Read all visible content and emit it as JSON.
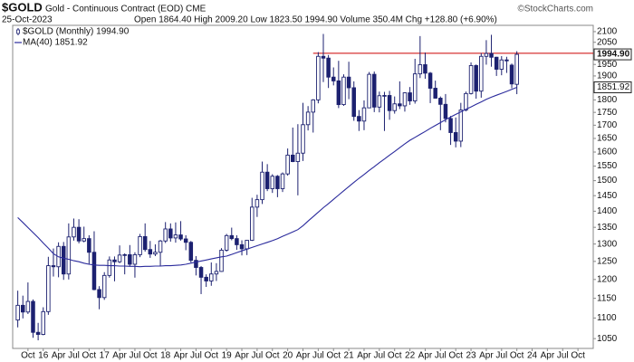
{
  "header": {
    "symbol": "$GOLD",
    "description": "Gold - Continuous Contract (EOD) CME",
    "date": "25-Oct-2023",
    "quote": "Open 1864.40 High 2009.20 Low 1823.50 1994.90 Volume 350.4M Chg +128.80 (+6.90%)",
    "copyright": "©StockCharts.com"
  },
  "chart_data": {
    "type": "candlestick",
    "log_scale": true,
    "grid": false,
    "legend": "top-left",
    "x": [
      "2015-08",
      "2015-09",
      "2015-10",
      "2015-11",
      "2015-12",
      "2016-01",
      "2016-02",
      "2016-03",
      "2016-04",
      "2016-05",
      "2016-06",
      "2016-07",
      "2016-08",
      "2016-09",
      "2016-10",
      "2016-11",
      "2016-12",
      "2017-01",
      "2017-02",
      "2017-03",
      "2017-04",
      "2017-05",
      "2017-06",
      "2017-07",
      "2017-08",
      "2017-09",
      "2017-10",
      "2017-11",
      "2017-12",
      "2018-01",
      "2018-02",
      "2018-03",
      "2018-04",
      "2018-05",
      "2018-06",
      "2018-07",
      "2018-08",
      "2018-09",
      "2018-10",
      "2018-11",
      "2018-12",
      "2019-01",
      "2019-02",
      "2019-03",
      "2019-04",
      "2019-05",
      "2019-06",
      "2019-07",
      "2019-08",
      "2019-09",
      "2019-10",
      "2019-11",
      "2019-12",
      "2020-01",
      "2020-02",
      "2020-03",
      "2020-04",
      "2020-05",
      "2020-06",
      "2020-07",
      "2020-08",
      "2020-09",
      "2020-10",
      "2020-11",
      "2020-12",
      "2021-01",
      "2021-02",
      "2021-03",
      "2021-04",
      "2021-05",
      "2021-06",
      "2021-07",
      "2021-08",
      "2021-09",
      "2021-10",
      "2021-11",
      "2021-12",
      "2022-01",
      "2022-02",
      "2022-03",
      "2022-04",
      "2022-05",
      "2022-06",
      "2022-07",
      "2022-08",
      "2022-09",
      "2022-10",
      "2022-11",
      "2022-12",
      "2023-01",
      "2023-02",
      "2023-03",
      "2023-04",
      "2023-05",
      "2023-06",
      "2023-07",
      "2023-08",
      "2023-09",
      "2023-10"
    ],
    "series": [
      {
        "name": "$GOLD (Monthly) 1994.90",
        "color": "#1c2170",
        "open": [
          1095,
          1132,
          1115,
          1142,
          1065,
          1060,
          1116,
          1238,
          1235,
          1293,
          1215,
          1321,
          1350,
          1309,
          1316,
          1276,
          1173,
          1152,
          1211,
          1254,
          1249,
          1268,
          1269,
          1242,
          1269,
          1322,
          1284,
          1271,
          1276,
          1309,
          1345,
          1318,
          1327,
          1315,
          1305,
          1253,
          1233,
          1206,
          1196,
          1215,
          1222,
          1282,
          1325,
          1316,
          1298,
          1286,
          1311,
          1413,
          1437,
          1529,
          1473,
          1515,
          1473,
          1523,
          1589,
          1566,
          1596,
          1702,
          1751,
          1800,
          1986,
          1978,
          1895,
          1879,
          1781,
          1895,
          1850,
          1734,
          1716,
          1768,
          1907,
          1771,
          1817,
          1818,
          1757,
          1784,
          1776,
          1829,
          1796,
          1909,
          1949,
          1912,
          1848,
          1807,
          1782,
          1726,
          1672,
          1640,
          1759,
          1826,
          1945,
          1836,
          1986,
          1999,
          1982,
          1929,
          1970,
          1947,
          1864.4
        ],
        "high": [
          1170,
          1157,
          1192,
          1147,
          1088,
          1127,
          1263,
          1287,
          1305,
          1306,
          1362,
          1377,
          1375,
          1352,
          1326,
          1338,
          1182,
          1220,
          1264,
          1264,
          1296,
          1273,
          1297,
          1276,
          1330,
          1362,
          1309,
          1299,
          1312,
          1366,
          1362,
          1365,
          1369,
          1326,
          1309,
          1265,
          1237,
          1214,
          1247,
          1245,
          1288,
          1330,
          1349,
          1326,
          1311,
          1311,
          1443,
          1453,
          1566,
          1557,
          1522,
          1519,
          1528,
          1613,
          1691,
          1704,
          1788,
          1775,
          1803,
          2005,
          2089,
          1992,
          1937,
          1966,
          1907,
          1962,
          1877,
          1759,
          1798,
          1917,
          1919,
          1834,
          1833,
          1837,
          1814,
          1877,
          1831,
          1853,
          1975,
          2079,
          2003,
          1917,
          1880,
          1814,
          1824,
          1736,
          1730,
          1788,
          1834,
          1959,
          1950,
          2001,
          2060,
          2085,
          1984,
          1987,
          1984,
          1954,
          2009.2
        ],
        "low": [
          1077,
          1099,
          1110,
          1052,
          1046,
          1058,
          1108,
          1208,
          1206,
          1199,
          1200,
          1310,
          1302,
          1305,
          1241,
          1171,
          1122,
          1146,
          1205,
          1195,
          1245,
          1214,
          1236,
          1205,
          1262,
          1278,
          1260,
          1265,
          1237,
          1303,
          1307,
          1304,
          1310,
          1282,
          1247,
          1211,
          1161,
          1180,
          1183,
          1196,
          1221,
          1278,
          1311,
          1283,
          1267,
          1268,
          1309,
          1382,
          1423,
          1465,
          1459,
          1445,
          1462,
          1517,
          1564,
          1451,
          1568,
          1680,
          1672,
          1786,
          1874,
          1849,
          1860,
          1767,
          1776,
          1803,
          1717,
          1678,
          1681,
          1768,
          1751,
          1750,
          1678,
          1721,
          1745,
          1763,
          1753,
          1780,
          1785,
          1891,
          1888,
          1787,
          1805,
          1681,
          1711,
          1626,
          1617,
          1618,
          1754,
          1822,
          1805,
          1809,
          1949,
          1940,
          1900,
          1903,
          1913,
          1848,
          1823.5
        ],
        "close": [
          1132,
          1115,
          1142,
          1065,
          1060,
          1116,
          1238,
          1235,
          1293,
          1215,
          1321,
          1350,
          1309,
          1316,
          1276,
          1173,
          1152,
          1211,
          1254,
          1249,
          1268,
          1269,
          1242,
          1269,
          1322,
          1284,
          1271,
          1276,
          1309,
          1345,
          1318,
          1327,
          1315,
          1305,
          1253,
          1233,
          1206,
          1196,
          1215,
          1222,
          1282,
          1325,
          1316,
          1298,
          1286,
          1311,
          1413,
          1437,
          1529,
          1473,
          1515,
          1473,
          1523,
          1589,
          1566,
          1596,
          1702,
          1751,
          1800,
          1986,
          1978,
          1895,
          1879,
          1781,
          1895,
          1850,
          1734,
          1716,
          1768,
          1907,
          1771,
          1817,
          1818,
          1757,
          1784,
          1776,
          1829,
          1796,
          1909,
          1949,
          1912,
          1848,
          1807,
          1782,
          1726,
          1672,
          1640,
          1759,
          1826,
          1945,
          1836,
          1986,
          1999,
          1982,
          1929,
          1970,
          1966,
          1866,
          1994.9
        ]
      },
      {
        "name": "MA(40) 1851.92",
        "color": "#2a2a9c",
        "values": [
          1380,
          1365,
          1349,
          1334,
          1319,
          1303,
          1288,
          1272,
          1263,
          1259,
          1256,
          1252,
          1249,
          1245,
          1242,
          1240,
          1239,
          1239,
          1238,
          1238,
          1237,
          1237,
          1236,
          1236,
          1235,
          1236,
          1236,
          1237,
          1237,
          1238,
          1238,
          1239,
          1240,
          1242,
          1245,
          1248,
          1251,
          1254,
          1257,
          1260,
          1263,
          1265,
          1270,
          1275,
          1280,
          1285,
          1290,
          1295,
          1300,
          1305,
          1310,
          1316,
          1323,
          1329,
          1336,
          1343,
          1355,
          1369,
          1383,
          1397,
          1411,
          1424,
          1438,
          1452,
          1466,
          1480,
          1494,
          1508,
          1521,
          1535,
          1548,
          1562,
          1575,
          1589,
          1602,
          1616,
          1630,
          1643,
          1654,
          1665,
          1676,
          1688,
          1699,
          1710,
          1721,
          1732,
          1742,
          1752,
          1762,
          1772,
          1782,
          1792,
          1802,
          1811,
          1819,
          1827,
          1835,
          1843,
          1851.92
        ]
      }
    ],
    "xlim": [
      "2015-07",
      "2025-01"
    ],
    "xticks": [
      {
        "value": "2015-10",
        "label": "Oct"
      },
      {
        "value": "2016-01",
        "label": "16"
      },
      {
        "value": "2016-04",
        "label": "Apr"
      },
      {
        "value": "2016-07",
        "label": "Jul"
      },
      {
        "value": "2016-10",
        "label": "Oct"
      },
      {
        "value": "2017-01",
        "label": "17"
      },
      {
        "value": "2017-04",
        "label": "Apr"
      },
      {
        "value": "2017-07",
        "label": "Jul"
      },
      {
        "value": "2017-10",
        "label": "Oct"
      },
      {
        "value": "2018-01",
        "label": "18"
      },
      {
        "value": "2018-04",
        "label": "Apr"
      },
      {
        "value": "2018-07",
        "label": "Jul"
      },
      {
        "value": "2018-10",
        "label": "Oct"
      },
      {
        "value": "2019-01",
        "label": "19"
      },
      {
        "value": "2019-04",
        "label": "Apr"
      },
      {
        "value": "2019-07",
        "label": "Jul"
      },
      {
        "value": "2019-10",
        "label": "Oct"
      },
      {
        "value": "2020-01",
        "label": "20"
      },
      {
        "value": "2020-04",
        "label": "Apr"
      },
      {
        "value": "2020-07",
        "label": "Jul"
      },
      {
        "value": "2020-10",
        "label": "Oct"
      },
      {
        "value": "2021-01",
        "label": "21"
      },
      {
        "value": "2021-04",
        "label": "Apr"
      },
      {
        "value": "2021-07",
        "label": "Jul"
      },
      {
        "value": "2021-10",
        "label": "Oct"
      },
      {
        "value": "2022-01",
        "label": "22"
      },
      {
        "value": "2022-04",
        "label": "Apr"
      },
      {
        "value": "2022-07",
        "label": "Jul"
      },
      {
        "value": "2022-10",
        "label": "Oct"
      },
      {
        "value": "2023-01",
        "label": "23"
      },
      {
        "value": "2023-04",
        "label": "Apr"
      },
      {
        "value": "2023-07",
        "label": "Jul"
      },
      {
        "value": "2023-10",
        "label": "Oct"
      },
      {
        "value": "2024-01",
        "label": "24"
      },
      {
        "value": "2024-04",
        "label": "Apr"
      },
      {
        "value": "2024-07",
        "label": "Jul"
      },
      {
        "value": "2024-10",
        "label": "Oct"
      }
    ],
    "ylim": [
      1027,
      2130
    ],
    "yticks": [
      1050,
      1100,
      1150,
      1200,
      1250,
      1300,
      1350,
      1400,
      1450,
      1500,
      1550,
      1600,
      1650,
      1700,
      1750,
      1800,
      1850,
      1900,
      1950,
      2000,
      2050,
      2100
    ],
    "reference_line": {
      "value": 2000,
      "from": "2020-06",
      "color": "#cc0000"
    },
    "last_labels": [
      {
        "value": 1994.9,
        "label": "1994.90"
      },
      {
        "value": 1851.92,
        "label": "1851.92"
      }
    ]
  }
}
